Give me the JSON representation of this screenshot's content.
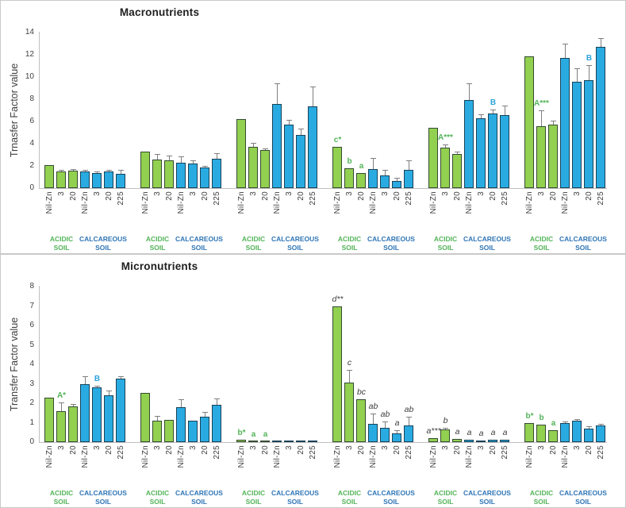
{
  "colors": {
    "acidic_bar": "#92D050",
    "calcareous_bar": "#29ABE2",
    "bar_border": "#2A3A46",
    "error_bar": "#7F7F7F",
    "axis_line": "#BFBFBF",
    "tick_text": "#404040",
    "title_text": "#1F1F1F",
    "panel_border": "#C9C9C9",
    "acidic_text": "#53B459",
    "calcareous_text": "#2E75B6",
    "note_green": "#53B459",
    "note_blue": "#2DA3DC",
    "note_dark": "#404040"
  },
  "bar_labels": {
    "acidic": [
      "Nil-Zn",
      "3",
      "20"
    ],
    "calcareous": [
      "Nil-Zn",
      "3",
      "20",
      "225"
    ]
  },
  "soil_labels": {
    "acidic": "ACIDIC SOIL",
    "calcareous": "CALCAREOUS SOIL"
  },
  "chart_data": [
    {
      "type": "bar",
      "title": "Macronutrients",
      "ylabel": "Trnasfer Factor value",
      "ylim": [
        0,
        14
      ],
      "ytick_step": 2,
      "grid": false,
      "legend": "none",
      "x_group_labels": {
        "acidic": [
          "Nil-Zn",
          "3",
          "20"
        ],
        "calcareous": [
          "Nil-Zn",
          "3",
          "20",
          "225"
        ]
      },
      "groups": [
        {
          "acidic": {
            "values": [
              2.05,
              1.5,
              1.6
            ],
            "errors": [
              0,
              0.1,
              0.15
            ],
            "notes": [
              null,
              null,
              null
            ]
          },
          "calcareous": {
            "values": [
              1.5,
              1.35,
              1.5,
              1.3
            ],
            "errors": [
              0.12,
              0.08,
              0.1,
              0.35
            ],
            "notes": [
              null,
              null,
              null,
              null
            ]
          }
        },
        {
          "acidic": {
            "values": [
              3.3,
              2.55,
              2.5
            ],
            "errors": [
              0,
              0.5,
              0.45
            ],
            "notes": [
              null,
              null,
              null
            ]
          },
          "calcareous": {
            "values": [
              2.3,
              2.25,
              1.85,
              2.65
            ],
            "errors": [
              0.55,
              0.25,
              0.15,
              0.5
            ],
            "notes": [
              null,
              null,
              null,
              null
            ]
          }
        },
        {
          "acidic": {
            "values": [
              6.2,
              3.75,
              3.4
            ],
            "errors": [
              0,
              0.3,
              0.15
            ],
            "notes": [
              null,
              null,
              null
            ]
          },
          "calcareous": {
            "values": [
              7.55,
              5.7,
              4.8,
              7.35
            ],
            "errors": [
              1.85,
              0.45,
              0.55,
              1.8
            ],
            "notes": [
              null,
              null,
              null,
              null
            ]
          }
        },
        {
          "acidic": {
            "values": [
              3.75,
              1.8,
              1.35
            ],
            "errors": [
              0,
              0,
              0
            ],
            "notes": [
              {
                "text": "c*",
                "style": "green"
              },
              {
                "text": "b",
                "style": "green"
              },
              {
                "text": "a",
                "style": "green"
              }
            ]
          },
          "calcareous": {
            "values": [
              1.7,
              1.15,
              0.65,
              1.65
            ],
            "errors": [
              1.0,
              0.5,
              0.25,
              0.85
            ],
            "notes": [
              null,
              null,
              null,
              null
            ]
          }
        },
        {
          "acidic": {
            "values": [
              5.45,
              3.65,
              3.1
            ],
            "errors": [
              0,
              0.3,
              0.2
            ],
            "notes": [
              null,
              {
                "text": "A***",
                "style": "green"
              },
              null
            ]
          },
          "calcareous": {
            "values": [
              7.95,
              6.3,
              6.7,
              6.6
            ],
            "errors": [
              1.5,
              0.35,
              0.35,
              0.8
            ],
            "notes": [
              null,
              null,
              {
                "text": "B",
                "style": "blue"
              },
              null
            ]
          }
        },
        {
          "acidic": {
            "values": [
              11.85,
              5.6,
              5.75
            ],
            "errors": [
              0,
              1.4,
              0.35
            ],
            "notes": [
              null,
              {
                "text": "A***",
                "style": "green"
              },
              null
            ]
          },
          "calcareous": {
            "values": [
              11.75,
              9.6,
              9.75,
              12.75
            ],
            "errors": [
              1.25,
              1.2,
              1.35,
              0.75
            ],
            "notes": [
              null,
              null,
              {
                "text": "B",
                "style": "blue"
              },
              null
            ]
          }
        }
      ]
    },
    {
      "type": "bar",
      "title": "Micronutrients",
      "ylabel": "Transfer Factor value",
      "ylim": [
        0,
        8
      ],
      "ytick_step": 1,
      "grid": false,
      "legend": "none",
      "x_group_labels": {
        "acidic": [
          "Nil-Zn",
          "3",
          "20"
        ],
        "calcareous": [
          "Nil-Zn",
          "3",
          "20",
          "225"
        ]
      },
      "groups": [
        {
          "acidic": {
            "values": [
              2.3,
              1.6,
              1.85
            ],
            "errors": [
              0,
              0.45,
              0.12
            ],
            "notes": [
              null,
              {
                "text": "A*",
                "style": "green"
              },
              null
            ]
          },
          "calcareous": {
            "values": [
              3.0,
              2.8,
              2.4,
              3.25
            ],
            "errors": [
              0.4,
              0.08,
              0.27,
              0.13
            ],
            "notes": [
              null,
              {
                "text": "B",
                "style": "blue"
              },
              null,
              null
            ]
          }
        },
        {
          "acidic": {
            "values": [
              2.55,
              1.1,
              1.15
            ],
            "errors": [
              0,
              0.25,
              0
            ],
            "notes": [
              null,
              null,
              null
            ]
          },
          "calcareous": {
            "values": [
              1.8,
              1.1,
              1.3,
              1.9
            ],
            "errors": [
              0.4,
              0,
              0.25,
              0.33
            ],
            "notes": [
              null,
              null,
              null,
              null
            ]
          }
        },
        {
          "acidic": {
            "values": [
              0.12,
              0.03,
              0.03
            ],
            "errors": [
              0,
              0,
              0
            ],
            "notes": [
              {
                "text": "b*",
                "style": "green"
              },
              {
                "text": "a",
                "style": "green"
              },
              {
                "text": "a",
                "style": "green"
              }
            ]
          },
          "calcareous": {
            "values": [
              0.03,
              0.03,
              0.03,
              0.05
            ],
            "errors": [
              0,
              0,
              0,
              0
            ],
            "notes": [
              null,
              null,
              null,
              null
            ]
          }
        },
        {
          "acidic": {
            "values": [
              7.0,
              3.05,
              2.2
            ],
            "errors": [
              0,
              0.65,
              0
            ],
            "notes": [
              {
                "text": "d**",
                "style": "dark"
              },
              {
                "text": "c",
                "style": "dark"
              },
              {
                "text": "bc",
                "style": "dark"
              }
            ]
          },
          "calcareous": {
            "values": [
              0.95,
              0.75,
              0.45,
              0.85
            ],
            "errors": [
              0.5,
              0.3,
              0.15,
              0.45
            ],
            "notes": [
              {
                "text": "ab",
                "style": "dark"
              },
              {
                "text": "ab",
                "style": "dark"
              },
              {
                "text": "a",
                "style": "dark"
              },
              {
                "text": "ab",
                "style": "dark"
              }
            ]
          }
        },
        {
          "acidic": {
            "values": [
              0.2,
              0.65,
              0.15
            ],
            "errors": [
              0,
              0.08,
              0
            ],
            "notes": [
              {
                "text": "a***",
                "style": "dark"
              },
              {
                "text": "b",
                "style": "dark"
              },
              {
                "text": "a",
                "style": "dark"
              }
            ]
          },
          "calcareous": {
            "values": [
              0.12,
              0.08,
              0.12,
              0.12
            ],
            "errors": [
              0,
              0,
              0,
              0
            ],
            "notes": [
              {
                "text": "a",
                "style": "dark"
              },
              {
                "text": "a",
                "style": "dark"
              },
              {
                "text": "a",
                "style": "dark"
              },
              {
                "text": "a",
                "style": "dark"
              }
            ]
          }
        },
        {
          "acidic": {
            "values": [
              1.0,
              0.9,
              0.6
            ],
            "errors": [
              0,
              0,
              0
            ],
            "notes": [
              {
                "text": "b*",
                "style": "green"
              },
              {
                "text": "b",
                "style": "green"
              },
              {
                "text": "a",
                "style": "green"
              }
            ]
          },
          "calcareous": {
            "values": [
              1.0,
              1.1,
              0.7,
              0.85
            ],
            "errors": [
              0.08,
              0.08,
              0.12,
              0.05
            ],
            "notes": [
              null,
              null,
              null,
              null
            ]
          }
        }
      ]
    }
  ]
}
